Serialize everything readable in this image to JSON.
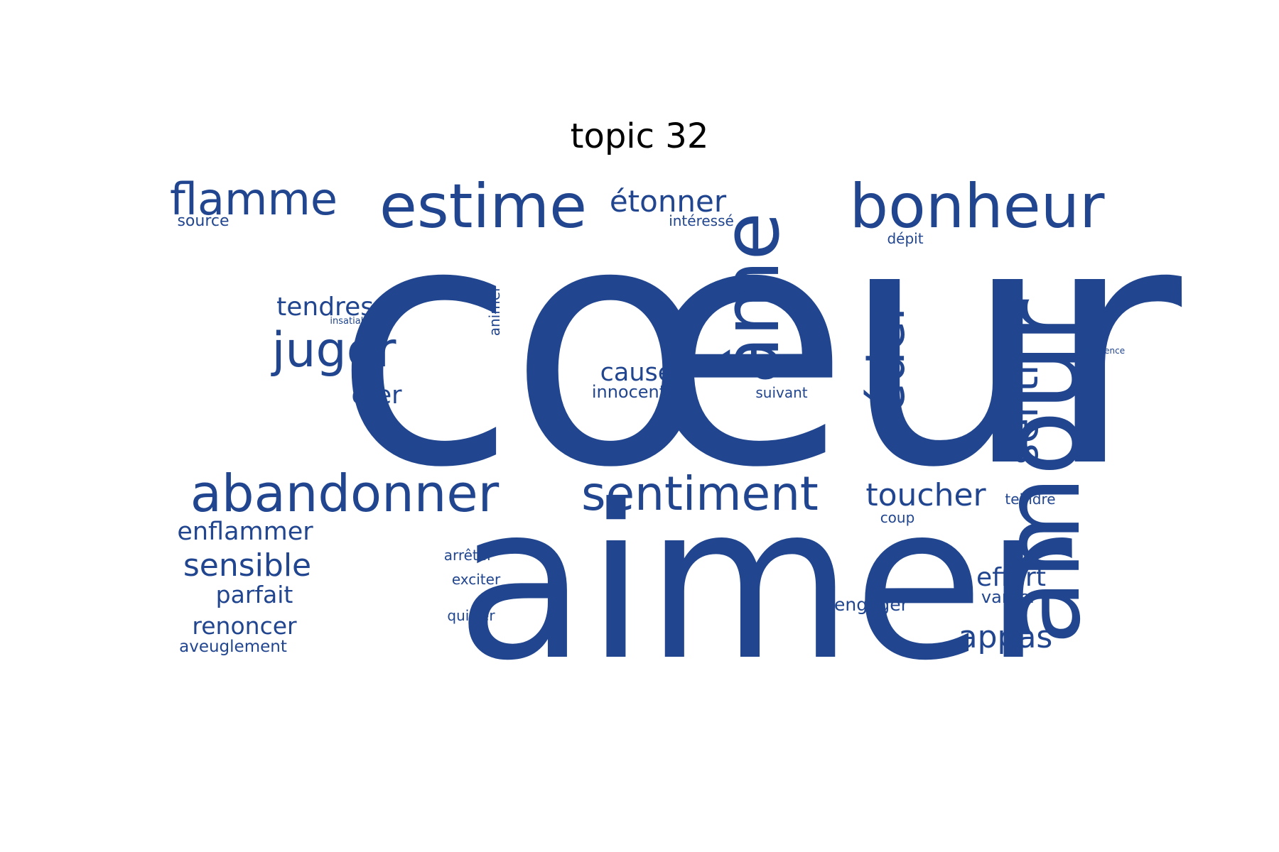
{
  "title": "topic 32",
  "color": "#21468f",
  "words": [
    "cœur",
    "aimer",
    "âme",
    "amour",
    "bonheur",
    "estime",
    "abandonner",
    "sentiment",
    "céder",
    "juger",
    "flamme",
    "sentir",
    "étonner",
    "toucher",
    "tendresse",
    "appas",
    "sensible",
    "effort",
    "enflammer",
    "renoncer",
    "parfait",
    "cause",
    "ôter",
    "source",
    "intéressé",
    "engager",
    "innocent",
    "vanter",
    "aveuglement",
    "teindre",
    "dépit",
    "arrêter",
    "animer",
    "exciter",
    "quitter",
    "coup",
    "suivant",
    "insatiable",
    "déférence",
    "égarer"
  ]
}
